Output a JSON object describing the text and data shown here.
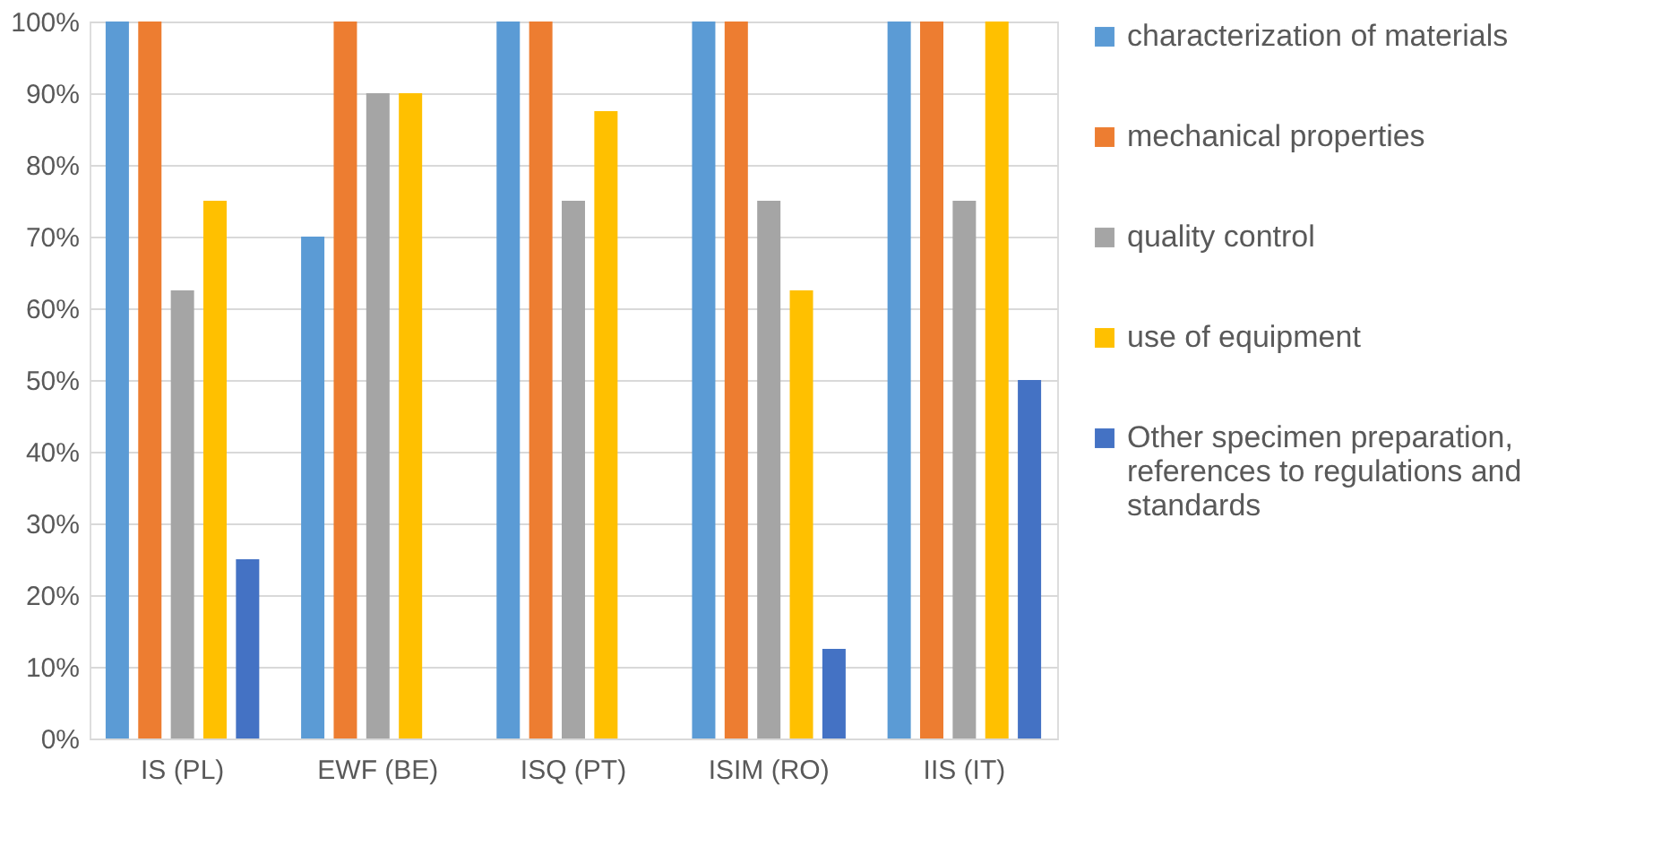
{
  "chart_data": {
    "type": "bar",
    "categories": [
      "IS (PL)",
      "EWF (BE)",
      "ISQ (PT)",
      "ISIM (RO)",
      "IIS (IT)"
    ],
    "series": [
      {
        "name": "characterization of materials",
        "color": "#5b9bd5",
        "values": [
          100,
          70,
          100,
          100,
          100
        ]
      },
      {
        "name": "mechanical properties",
        "color": "#ed7d31",
        "values": [
          100,
          100,
          100,
          100,
          100
        ]
      },
      {
        "name": "quality control",
        "color": "#a5a5a5",
        "values": [
          62.5,
          90,
          75,
          75,
          75
        ]
      },
      {
        "name": "use of equipment",
        "color": "#ffc000",
        "values": [
          75,
          90,
          87.5,
          62.5,
          100
        ]
      },
      {
        "name": "Other specimen preparation, references to regulations and standards",
        "color": "#4472c4",
        "values": [
          25,
          null,
          null,
          12.5,
          50
        ]
      }
    ],
    "ylim": [
      0,
      100
    ],
    "yticks": [
      {
        "value": 0,
        "label": "0%"
      },
      {
        "value": 10,
        "label": "10%"
      },
      {
        "value": 20,
        "label": "20%"
      },
      {
        "value": 30,
        "label": "30%"
      },
      {
        "value": 40,
        "label": "40%"
      },
      {
        "value": 50,
        "label": "50%"
      },
      {
        "value": 60,
        "label": "60%"
      },
      {
        "value": 70,
        "label": "70%"
      },
      {
        "value": 80,
        "label": "80%"
      },
      {
        "value": 90,
        "label": "90%"
      },
      {
        "value": 100,
        "label": "100%"
      }
    ],
    "grid": "y",
    "legend": "right"
  }
}
